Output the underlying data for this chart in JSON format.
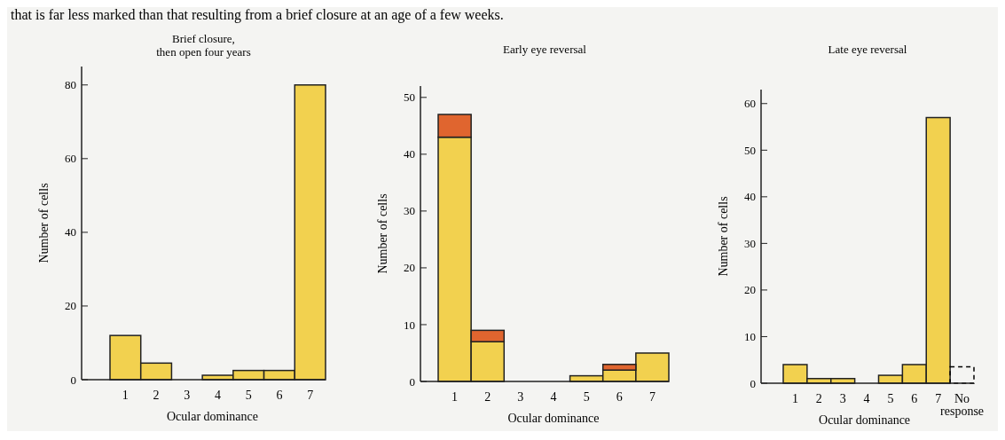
{
  "chart_data": [
    {
      "type": "bar",
      "title": "Brief closure,\nthen open four years",
      "xlabel": "Ocular dominance",
      "ylabel": "Number of cells",
      "annotations": [
        "that is far less marked than that resulting from a brief closure at an age of a few weeks."
      ],
      "categories": [
        "1",
        "2",
        "3",
        "4",
        "5",
        "6",
        "7"
      ],
      "series": [
        {
          "color": "#f2d14f",
          "values": [
            12,
            4.5,
            0,
            1.2,
            2.5,
            2.5,
            80
          ]
        }
      ],
      "ylim": [
        0,
        85
      ],
      "yticks": [
        0,
        20,
        40,
        60,
        80
      ]
    },
    {
      "type": "bar",
      "title": "Early eye reversal",
      "xlabel": "Ocular dominance",
      "ylabel": "Number of cells",
      "categories": [
        "1",
        "2",
        "3",
        "4",
        "5",
        "6",
        "7"
      ],
      "stacked": true,
      "series": [
        {
          "color": "#f2d14f",
          "values": [
            43,
            7,
            0,
            0,
            1,
            2,
            5
          ]
        },
        {
          "color": "#e0652f",
          "values": [
            4,
            2,
            0,
            0,
            0,
            1,
            0
          ]
        }
      ],
      "ylim": [
        0,
        52
      ],
      "yticks": [
        0,
        10,
        20,
        30,
        40,
        50
      ]
    },
    {
      "type": "bar",
      "title": "Late eye reversal",
      "xlabel": "Ocular dominance",
      "ylabel": "Number of cells",
      "categories": [
        "1",
        "2",
        "3",
        "4",
        "5",
        "6",
        "7",
        "No response"
      ],
      "series": [
        {
          "color": "#f2d14f",
          "values": [
            4,
            1,
            1,
            0,
            1.7,
            4,
            57,
            null
          ]
        },
        {
          "color": "#000000",
          "line_style": "dashed",
          "values": [
            null,
            null,
            null,
            null,
            null,
            null,
            null,
            3.5
          ]
        }
      ],
      "ylim": [
        0,
        63
      ],
      "yticks": [
        0,
        10,
        20,
        30,
        40,
        50,
        60
      ]
    }
  ]
}
